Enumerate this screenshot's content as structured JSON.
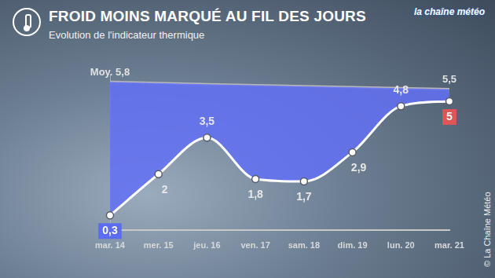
{
  "chart_data": {
    "type": "line",
    "title": "FROID MOINS MARQUÉ AU FIL DES JOURS",
    "subtitle": "Evolution de l'indicateur thermique",
    "logo": "la chaîne météo",
    "source": "© La Chaîne Météo",
    "categories": [
      "mar. 14",
      "mer. 15",
      "jeu. 16",
      "ven. 17",
      "sam. 18",
      "dim. 19",
      "lun. 20",
      "mar. 21"
    ],
    "series": [
      {
        "name": "Moy.",
        "color": "#b8b8b8",
        "values": [
          5.8,
          5.75,
          5.7,
          5.66,
          5.62,
          5.58,
          5.54,
          5.5
        ],
        "value_labels": [
          "5,8",
          null,
          null,
          null,
          null,
          null,
          null,
          "5,5"
        ]
      },
      {
        "color": "#ffffff",
        "values": [
          0.3,
          2,
          3.5,
          1.8,
          1.7,
          2.9,
          4.8,
          5
        ],
        "value_labels": [
          "0,3",
          "2",
          "3,5",
          "1,8",
          "1,7",
          "2,9",
          "4,8",
          "5"
        ]
      }
    ],
    "ylim": [
      -0.3,
      6.1
    ],
    "grid": false,
    "tick_labels": "x",
    "data_labels": true
  }
}
